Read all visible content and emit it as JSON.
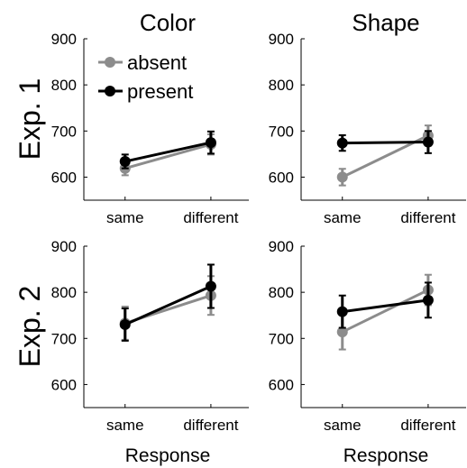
{
  "column_titles": [
    "Color",
    "Shape"
  ],
  "row_titles": [
    "Exp. 1",
    "Exp. 2"
  ],
  "xlabel": "Response",
  "legend": {
    "labels": [
      "absent",
      "present"
    ],
    "placement": "top-left"
  },
  "colors": {
    "absent": "#8c8c8c",
    "present": "#000000",
    "axis": "#000000"
  },
  "chart_data": [
    {
      "type": "line",
      "row_title": "Exp. 1",
      "column_title": "Color",
      "categories": [
        "same",
        "different"
      ],
      "ylim": [
        550,
        900
      ],
      "yticks": [
        600,
        700,
        800,
        900
      ],
      "series": [
        {
          "name": "absent",
          "values": [
            619,
            671
          ],
          "err": [
            15,
            22
          ]
        },
        {
          "name": "present",
          "values": [
            634,
            675
          ],
          "err": [
            15,
            24
          ]
        }
      ]
    },
    {
      "type": "line",
      "row_title": "Exp. 1",
      "column_title": "Shape",
      "categories": [
        "same",
        "different"
      ],
      "ylim": [
        550,
        900
      ],
      "yticks": [
        600,
        700,
        800,
        900
      ],
      "series": [
        {
          "name": "absent",
          "values": [
            600,
            690
          ],
          "err": [
            18,
            22
          ]
        },
        {
          "name": "present",
          "values": [
            674,
            676
          ],
          "err": [
            17,
            24
          ]
        }
      ]
    },
    {
      "type": "line",
      "row_title": "Exp. 2",
      "column_title": "Color",
      "categories": [
        "same",
        "different"
      ],
      "ylim": [
        550,
        900
      ],
      "yticks": [
        600,
        700,
        800,
        900
      ],
      "series": [
        {
          "name": "absent",
          "values": [
            733,
            793
          ],
          "err": [
            36,
            42
          ]
        },
        {
          "name": "present",
          "values": [
            730,
            813
          ],
          "err": [
            35,
            47
          ]
        }
      ]
    },
    {
      "type": "line",
      "row_title": "Exp. 2",
      "column_title": "Shape",
      "categories": [
        "same",
        "different"
      ],
      "ylim": [
        550,
        900
      ],
      "yticks": [
        600,
        700,
        800,
        900
      ],
      "series": [
        {
          "name": "absent",
          "values": [
            714,
            805
          ],
          "err": [
            38,
            33
          ]
        },
        {
          "name": "present",
          "values": [
            758,
            783
          ],
          "err": [
            35,
            38
          ]
        }
      ]
    }
  ]
}
